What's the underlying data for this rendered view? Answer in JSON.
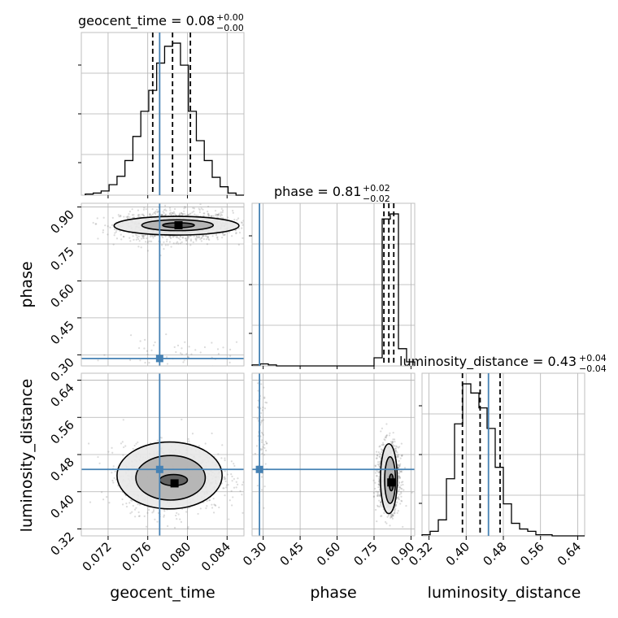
{
  "chart_data": {
    "type": "corner",
    "parameters": [
      "geocent_time",
      "phase",
      "luminosity_distance"
    ],
    "axis_labels": [
      "geocent_time",
      "phase",
      "luminosity_distance"
    ],
    "ranges": {
      "geocent_time": [
        0.0693,
        0.0857
      ],
      "phase": [
        0.255,
        0.915
      ],
      "luminosity_distance": [
        0.305,
        0.655
      ]
    },
    "ticks": {
      "geocent_time": [
        "0.072",
        "0.076",
        "0.080",
        "0.084"
      ],
      "phase": [
        "0.30",
        "0.45",
        "0.60",
        "0.75",
        "0.90"
      ],
      "luminosity_distance": [
        "0.32",
        "0.40",
        "0.48",
        "0.56",
        "0.64"
      ]
    },
    "tick_values": {
      "geocent_time": [
        0.072,
        0.076,
        0.08,
        0.084
      ],
      "phase": [
        0.3,
        0.45,
        0.6,
        0.75,
        0.9
      ],
      "luminosity_distance": [
        0.32,
        0.4,
        0.48,
        0.56,
        0.64
      ]
    },
    "truths": {
      "geocent_time": 0.0772,
      "phase": 0.285,
      "luminosity_distance": 0.448
    },
    "titles": [
      {
        "param": "geocent_time",
        "label": "geocent_time = 0.08",
        "sup": "+0.00",
        "sub": "−0.00"
      },
      {
        "param": "phase",
        "label": "phase = 0.81",
        "sup": "+0.02",
        "sub": "−0.02"
      },
      {
        "param": "luminosity_distance",
        "label": "luminosity_distance = 0.43",
        "sup": "+0.04",
        "sub": "−0.04"
      }
    ],
    "quantiles": {
      "geocent_time": [
        0.0765,
        0.0785,
        0.0803
      ],
      "phase": [
        0.79,
        0.81,
        0.83
      ],
      "luminosity_distance": [
        0.392,
        0.43,
        0.473
      ]
    },
    "histograms": {
      "geocent_time": {
        "bins": [
          0.0697,
          0.0705,
          0.0713,
          0.0721,
          0.0729,
          0.0737,
          0.0745,
          0.0753,
          0.0761,
          0.0769,
          0.0777,
          0.0785,
          0.0793,
          0.0801,
          0.0809,
          0.0817,
          0.0825,
          0.0833,
          0.0841,
          0.0849,
          0.0857
        ],
        "counts": [
          1,
          2,
          4,
          10,
          18,
          33,
          56,
          80,
          100,
          126,
          142,
          145,
          124,
          80,
          52,
          33,
          17,
          8,
          2,
          0
        ]
      },
      "phase": {
        "bins": [
          0.255,
          0.288,
          0.321,
          0.354,
          0.387,
          0.42,
          0.453,
          0.486,
          0.519,
          0.552,
          0.585,
          0.618,
          0.651,
          0.684,
          0.717,
          0.75,
          0.783,
          0.816,
          0.849,
          0.882,
          0.915
        ],
        "counts": [
          1,
          2,
          1,
          0,
          0,
          0,
          0,
          0,
          0,
          0,
          0,
          0,
          0,
          0,
          0,
          8,
          145,
          150,
          17,
          4
        ]
      },
      "luminosity_distance": {
        "bins": [
          0.305,
          0.3225,
          0.34,
          0.3575,
          0.375,
          0.3925,
          0.41,
          0.4275,
          0.445,
          0.4625,
          0.48,
          0.4975,
          0.515,
          0.5325,
          0.55,
          0.5675,
          0.585,
          0.6025,
          0.62,
          0.6375,
          0.655
        ],
        "counts": [
          1,
          4,
          14,
          50,
          98,
          133,
          125,
          112,
          94,
          60,
          28,
          11,
          6,
          4,
          1,
          1,
          0,
          0,
          0,
          0
        ]
      }
    },
    "pairs": [
      {
        "x": "geocent_time",
        "y": "phase",
        "modes": [
          {
            "cx": 0.0789,
            "cy": 0.824,
            "sx": 0.0028,
            "sy": 0.03,
            "w": 0.96
          },
          {
            "cx": 0.0795,
            "cy": 0.305,
            "sx": 0.0035,
            "sy": 0.03,
            "w": 0.04
          }
        ],
        "contours": [
          {
            "cx": 0.0789,
            "cy": 0.824,
            "rx": 0.0063,
            "ry": 0.038
          },
          {
            "cx": 0.079,
            "cy": 0.826,
            "rx": 0.0036,
            "ry": 0.022
          },
          {
            "cx": 0.0791,
            "cy": 0.826,
            "rx": 0.0016,
            "ry": 0.01
          }
        ],
        "peak": {
          "x": 0.0791,
          "y": 0.826
        }
      },
      {
        "x": "geocent_time",
        "y": "luminosity_distance",
        "modes": [
          {
            "cx": 0.0785,
            "cy": 0.43,
            "sx": 0.0025,
            "sy": 0.035,
            "w": 1.0
          }
        ],
        "contours": [
          {
            "cx": 0.0782,
            "cy": 0.435,
            "rx": 0.0053,
            "ry": 0.072
          },
          {
            "cx": 0.0783,
            "cy": 0.43,
            "rx": 0.0035,
            "ry": 0.048
          },
          {
            "cx": 0.0786,
            "cy": 0.425,
            "rx": 0.0014,
            "ry": 0.012
          }
        ],
        "peak": {
          "x": 0.0787,
          "y": 0.418
        }
      },
      {
        "x": "phase",
        "y": "luminosity_distance",
        "modes": [
          {
            "cx": 0.81,
            "cy": 0.43,
            "sx": 0.022,
            "sy": 0.035,
            "w": 0.95
          },
          {
            "cx": 0.29,
            "cy": 0.52,
            "sx": 0.012,
            "sy": 0.06,
            "w": 0.05
          }
        ],
        "contours": [
          {
            "cx": 0.81,
            "cy": 0.428,
            "rx": 0.034,
            "ry": 0.075
          },
          {
            "cx": 0.815,
            "cy": 0.425,
            "rx": 0.022,
            "ry": 0.05
          },
          {
            "cx": 0.82,
            "cy": 0.42,
            "rx": 0.009,
            "ry": 0.018
          }
        ],
        "peak": {
          "x": 0.82,
          "y": 0.42
        }
      }
    ],
    "colors": {
      "truth": "#4682b4",
      "hist": "#000000",
      "points": "#7f7f7f"
    }
  }
}
